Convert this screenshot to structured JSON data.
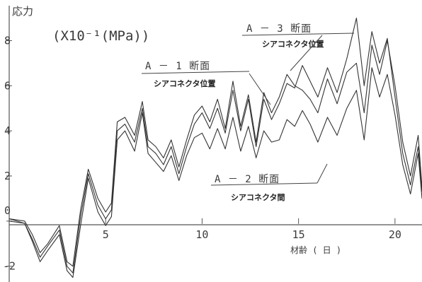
{
  "chart_data": {
    "type": "line",
    "ylabel": "応力",
    "unit_label": "(X10⁻¹(MPa))",
    "xlabel": "材齢 ( 日 )",
    "xlim": [
      0,
      21.4
    ],
    "ylim": [
      -2.7,
      9.8
    ],
    "x_ticks": [
      5,
      10,
      15,
      20
    ],
    "y_ticks": [
      -2,
      0,
      2,
      4,
      6,
      8
    ],
    "series": [
      {
        "name": "A－1断面 シアコネクタ位置",
        "x": [
          0,
          0.8,
          1.2,
          1.6,
          2.0,
          2.6,
          3.0,
          3.3,
          3.7,
          4.1,
          4.6,
          5.0,
          5.3,
          5.6,
          6.0,
          6.5,
          6.9,
          7.2,
          7.6,
          8.0,
          8.4,
          8.8,
          9.2,
          9.6,
          10.0,
          10.4,
          10.8,
          11.2,
          11.6,
          12.0,
          12.4,
          12.8,
          13.2,
          13.6,
          14.0,
          14.4,
          14.8,
          15.2,
          15.6,
          16.0,
          16.5,
          17.0,
          17.5,
          18.0,
          18.4,
          18.8,
          19.2,
          19.6,
          20.0,
          20.4,
          20.8,
          21.2,
          21.4
        ],
        "y": [
          0.1,
          0.0,
          -0.6,
          -1.4,
          -1.0,
          -0.2,
          -1.8,
          -2.0,
          0.5,
          2.3,
          1.0,
          0.4,
          0.8,
          4.4,
          4.6,
          3.8,
          5.3,
          3.6,
          3.3,
          2.8,
          3.6,
          2.4,
          3.6,
          4.7,
          5.1,
          4.4,
          5.4,
          4.1,
          6.2,
          4.2,
          5.6,
          3.5,
          5.7,
          4.8,
          5.5,
          6.5,
          6.0,
          5.8,
          5.4,
          4.8,
          6.3,
          5.2,
          6.6,
          7.0,
          4.8,
          7.8,
          6.5,
          8.0,
          6.0,
          3.5,
          2.0,
          3.8,
          1.5
        ]
      },
      {
        "name": "A－2断面 シアコネクタ間",
        "x": [
          0,
          0.8,
          1.2,
          1.6,
          2.0,
          2.6,
          3.0,
          3.3,
          3.7,
          4.1,
          4.6,
          5.0,
          5.3,
          5.6,
          6.0,
          6.5,
          6.9,
          7.2,
          7.6,
          8.0,
          8.4,
          8.8,
          9.2,
          9.6,
          10.0,
          10.4,
          10.8,
          11.2,
          11.6,
          12.0,
          12.4,
          12.8,
          13.2,
          13.6,
          14.0,
          14.4,
          14.8,
          15.2,
          15.6,
          16.0,
          16.5,
          17.0,
          17.5,
          18.0,
          18.4,
          18.8,
          19.2,
          19.6,
          20.0,
          20.4,
          20.8,
          21.2,
          21.4
        ],
        "y": [
          0.0,
          -0.1,
          -0.9,
          -1.8,
          -1.3,
          -0.6,
          -2.2,
          -2.5,
          -0.2,
          1.9,
          0.4,
          -0.2,
          0.2,
          3.6,
          4.0,
          3.1,
          4.8,
          3.0,
          2.6,
          2.2,
          2.9,
          1.8,
          2.9,
          3.7,
          3.9,
          3.2,
          4.1,
          3.2,
          4.6,
          3.1,
          4.2,
          2.8,
          4.0,
          3.5,
          3.6,
          4.5,
          4.2,
          4.9,
          4.3,
          3.5,
          4.6,
          3.8,
          5.0,
          5.8,
          3.6,
          6.8,
          5.5,
          6.5,
          4.7,
          2.5,
          1.2,
          3.0,
          1.0
        ]
      },
      {
        "name": "A－3断面 シアコネクタ位置",
        "x": [
          0,
          0.8,
          1.2,
          1.6,
          2.0,
          2.6,
          3.0,
          3.3,
          3.7,
          4.1,
          4.6,
          5.0,
          5.3,
          5.6,
          6.0,
          6.5,
          6.9,
          7.2,
          7.6,
          8.0,
          8.4,
          8.8,
          9.2,
          9.6,
          10.0,
          10.4,
          10.8,
          11.2,
          11.6,
          12.0,
          12.4,
          12.8,
          13.2,
          13.6,
          14.0,
          14.4,
          14.8,
          15.2,
          15.6,
          16.0,
          16.5,
          17.0,
          17.5,
          18.0,
          18.4,
          18.8,
          19.2,
          19.6,
          20.0,
          20.4,
          20.8,
          21.2,
          21.4
        ],
        "y": [
          0.1,
          -0.1,
          -0.8,
          -1.6,
          -1.1,
          -0.4,
          -2.0,
          -2.3,
          0.2,
          2.1,
          0.7,
          0.1,
          0.5,
          4.0,
          4.3,
          3.5,
          5.0,
          3.3,
          3.0,
          2.5,
          3.3,
          2.1,
          3.3,
          4.3,
          4.8,
          4.1,
          5.0,
          3.9,
          5.8,
          4.0,
          5.4,
          3.3,
          5.4,
          4.5,
          5.2,
          6.1,
          5.9,
          6.9,
          6.2,
          5.5,
          6.8,
          5.7,
          7.2,
          9.0,
          6.0,
          8.4,
          7.0,
          8.1,
          5.5,
          3.0,
          1.6,
          3.3,
          1.3
        ]
      }
    ],
    "annotations": [
      {
        "title": "A － 3 断面",
        "subtitle": "シアコネクタ位置"
      },
      {
        "title": "A － 1 断面",
        "subtitle": "シアコネクタ位置"
      },
      {
        "title": "A － 2 断面",
        "subtitle": "シアコネクタ間"
      }
    ],
    "grid": false,
    "legend": "none"
  }
}
